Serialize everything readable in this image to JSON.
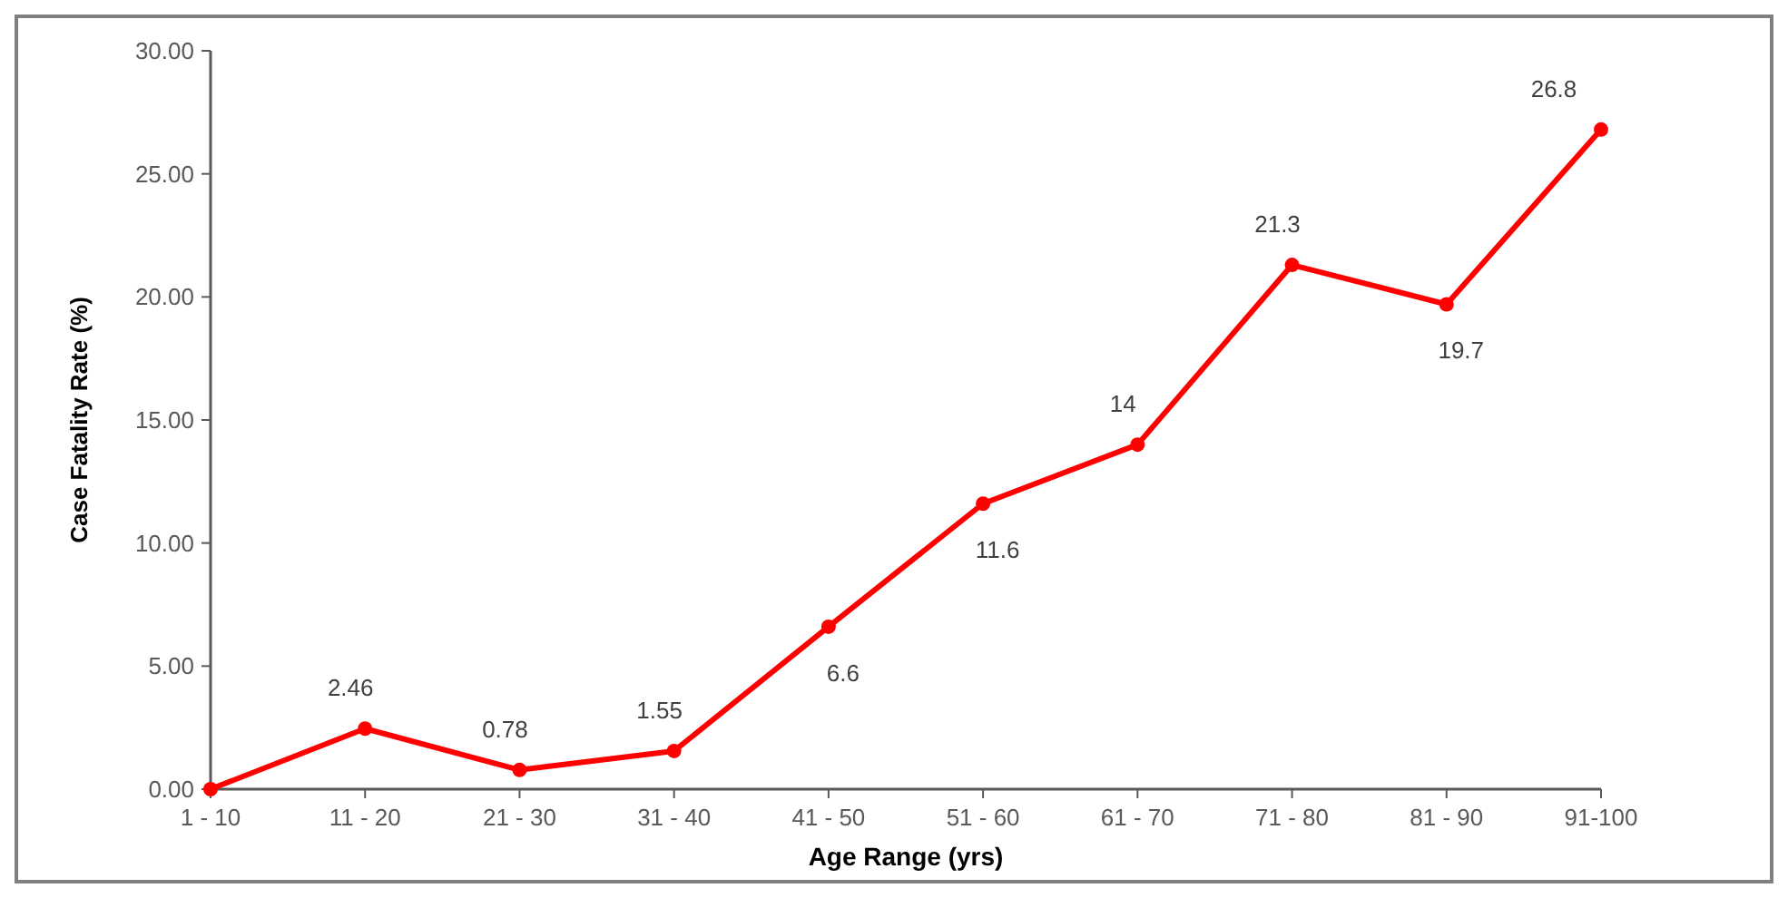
{
  "chart_data": {
    "type": "line",
    "xlabel": "Age Range (yrs)",
    "ylabel": "Case Fatality Rate (%)",
    "categories": [
      "1 - 10",
      "11 - 20",
      "21 - 30",
      "31 - 40",
      "41 - 50",
      "51 - 60",
      "61 - 70",
      "71 - 80",
      "81 - 90",
      "91-100"
    ],
    "series": [
      {
        "color": "#ff0000",
        "values": [
          0,
          2.46,
          0.78,
          1.55,
          6.6,
          11.6,
          14,
          21.3,
          19.7,
          26.8
        ],
        "value_labels": [
          null,
          "2.46",
          "0.78",
          "1.55",
          "6.6",
          "11.6",
          "14",
          "21.3",
          "19.7",
          "26.8"
        ]
      }
    ],
    "ylim": [
      0,
      30
    ],
    "yticks": [
      {
        "value": 0,
        "label": "0.00"
      },
      {
        "value": 5,
        "label": "5.00"
      },
      {
        "value": 10,
        "label": "10.00"
      },
      {
        "value": 15,
        "label": "15.00"
      },
      {
        "value": 20,
        "label": "20.00"
      },
      {
        "value": 25,
        "label": "25.00"
      },
      {
        "value": 30,
        "label": "30.00"
      }
    ],
    "grid": false,
    "marker": "circle",
    "line_style": "solid"
  }
}
